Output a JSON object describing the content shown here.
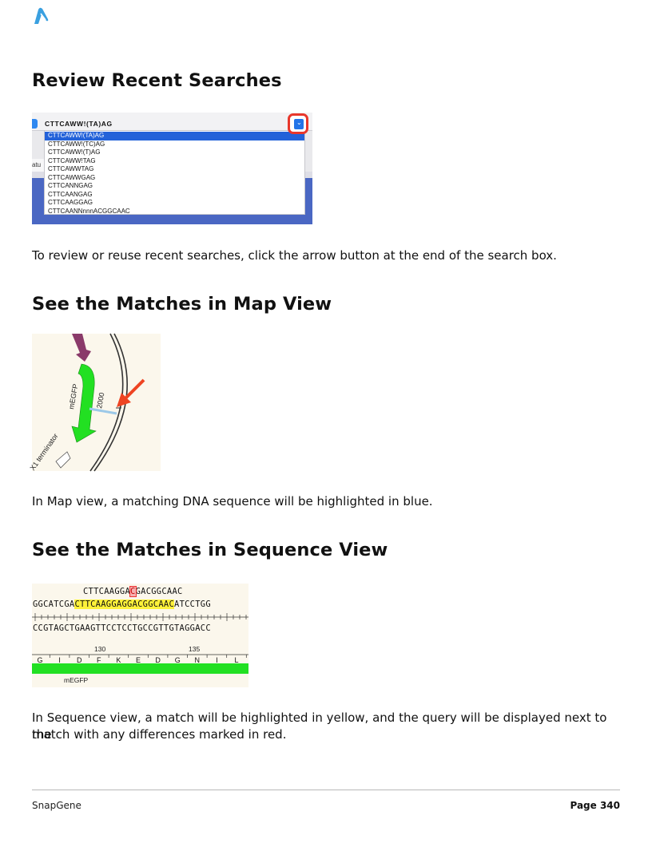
{
  "logo": {
    "icon": "snapgene-logo-icon",
    "color": "#3aa0e0"
  },
  "sections": [
    {
      "heading": "Review Recent Searches",
      "paragraph": "To review or reuse recent searches, click the arrow button at the end of the search box."
    },
    {
      "heading": "See the Matches in Map View",
      "paragraph": "In Map view, a matching DNA sequence will be highlighted in blue."
    },
    {
      "heading": "See the Matches in Sequence View",
      "paragraph_line1": "In Sequence view, a match will be highlighted in yellow, and the query will be displayed next to the",
      "paragraph_line2": "match with any differences marked in red."
    }
  ],
  "search_screenshot": {
    "query": "CTTCAWW!(TA)AG",
    "arrow_icon": "chevron-down-icon",
    "behind_text": "atu",
    "items": [
      "CTTCAWW!(TA)AG",
      "CTTCAWW!(TC)AG",
      "CTTCAWW!(T)AG",
      "CTTCAWW!TAG",
      "CTTCAWWTAG",
      "CTTCAWWGAG",
      "CTTCANNGAG",
      "CTTCAANGAG",
      "CTTCAAGGAG",
      "CTTCAANNnnnACGGCAAC"
    ],
    "selected_index": 0,
    "highlight_color": "#2362d9",
    "callout_color": "#e8372b"
  },
  "map_screenshot": {
    "feature_label": "mEGFP",
    "terminator_label": "X1 terminator",
    "position_label": "2000",
    "match_color": "#9cc9e8",
    "feature_color": "#22e022",
    "arrow_color": "#ee4422",
    "upstream_feature_color": "#8a3a6a"
  },
  "sequence_screenshot": {
    "query_prefix": "CTTCAAGGA",
    "query_mismatch": "C",
    "query_suffix": "GACGGCAAC",
    "top_left": "GGCATCGA",
    "top_match": "CTTCAAGGAGGACGGCAAC",
    "top_right": "ATCCTGG",
    "bottom_strand": "CCGTAGCTGAAGTTCCTCCTGCCGTTGTAGGACC",
    "tick_130": "130",
    "tick_135": "135",
    "amino_acids": [
      "G",
      "I",
      "D",
      "F",
      "K",
      "E",
      "D",
      "G",
      "N",
      "I",
      "L"
    ],
    "feature_label": "mEGFP",
    "match_color": "#fff23a",
    "mismatch_color": "#ee3333",
    "feature_color": "#22e022"
  },
  "footer": {
    "left": "SnapGene",
    "right": "Page 340"
  }
}
